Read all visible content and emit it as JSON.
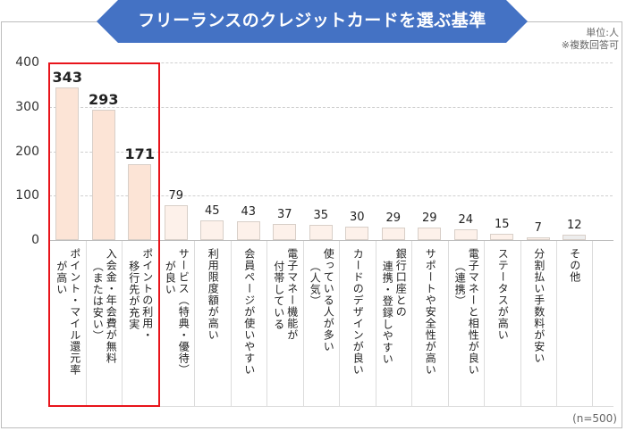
{
  "chart_data": {
    "type": "bar",
    "title": "フリーランスのクレジットカードを選ぶ基準",
    "unit_note": "単位:人",
    "multi_answer_note": "※複数回答可",
    "sample_note": "(n=500)",
    "xlabel": "",
    "ylabel": "",
    "ylim": [
      0,
      400
    ],
    "yticks": [
      "0",
      "100",
      "200",
      "300",
      "400"
    ],
    "grid": true,
    "categories": [
      "ポイント・マイル還元率が高い",
      "入会金・年会費が無料（または安い）",
      "ポイントの利用・移行先が充実",
      "サービス（特典・優待）が良い",
      "利用限度額が高い",
      "会員ページが使いやすい",
      "電子マネー機能が付帯している",
      "使っている人が多い（人気）",
      "カードのデザインが良い",
      "銀行口座との連携・登録しやすい",
      "サポートや安全性が高い",
      "電子マネーと相性が良い（連携）",
      "ステータスが高い",
      "分割払い手数料が安い",
      "その他"
    ],
    "category_lines": [
      [
        "ポイント・マイル還元率",
        "が高い"
      ],
      [
        "入会金・年会費が無料",
        "（または安い）"
      ],
      [
        "ポイントの利用・",
        "移行先が充実"
      ],
      [
        "サービス（特典・優待）",
        "が良い"
      ],
      [
        "利用限度額が高い"
      ],
      [
        "会員ページが使いやすい"
      ],
      [
        "電子マネー機能が",
        "付帯している"
      ],
      [
        "使っている人が多い",
        "（人気）"
      ],
      [
        "カードのデザインが良い"
      ],
      [
        "銀行口座との",
        "連携・登録しやすい"
      ],
      [
        "サポートや安全性が高い"
      ],
      [
        "電子マネーと相性が良い",
        "（連携）"
      ],
      [
        "ステータスが高い"
      ],
      [
        "分割払い手数料が安い"
      ],
      [
        "その他"
      ]
    ],
    "values": [
      343,
      293,
      171,
      79,
      45,
      43,
      37,
      35,
      30,
      29,
      29,
      24,
      15,
      7,
      12
    ],
    "value_labels": [
      "343",
      "293",
      "171",
      "79",
      "45",
      "43",
      "37",
      "35",
      "30",
      "29",
      "29",
      "24",
      "15",
      "7",
      "12"
    ],
    "highlighted_categories": [
      0,
      1,
      2
    ],
    "colors": {
      "banner": "#4472c4",
      "bar_top3": "#fce4d6",
      "bar_other": "#fdf1ea",
      "bar_other_category": "#ededed",
      "highlight_border": "#e8141b"
    }
  }
}
